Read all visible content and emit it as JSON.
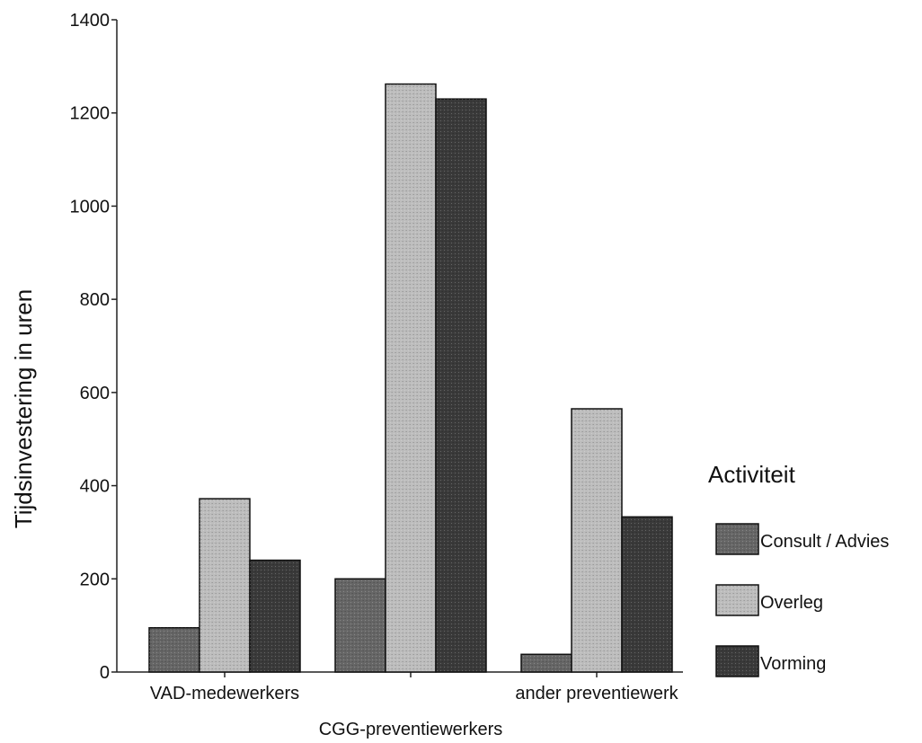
{
  "chart_data": {
    "type": "bar",
    "ylabel": "Tijdsinvestering in uren",
    "ylim": [
      0,
      1400
    ],
    "yticks": [
      0,
      200,
      400,
      600,
      800,
      1000,
      1200,
      1400
    ],
    "categories": [
      "VAD-medewerkers",
      "CGG-preventiewerkers",
      "ander preventiewerk"
    ],
    "legend_title": "Activiteit",
    "legend_position": "right",
    "grid": false,
    "series": [
      {
        "name": "Consult / Advies",
        "values": [
          95,
          200,
          38
        ],
        "color": "#666666"
      },
      {
        "name": "Overleg",
        "values": [
          372,
          1262,
          565
        ],
        "color": "#bdbdbd"
      },
      {
        "name": "Vorming",
        "values": [
          240,
          1230,
          333
        ],
        "color": "#3a3a3a"
      }
    ]
  }
}
